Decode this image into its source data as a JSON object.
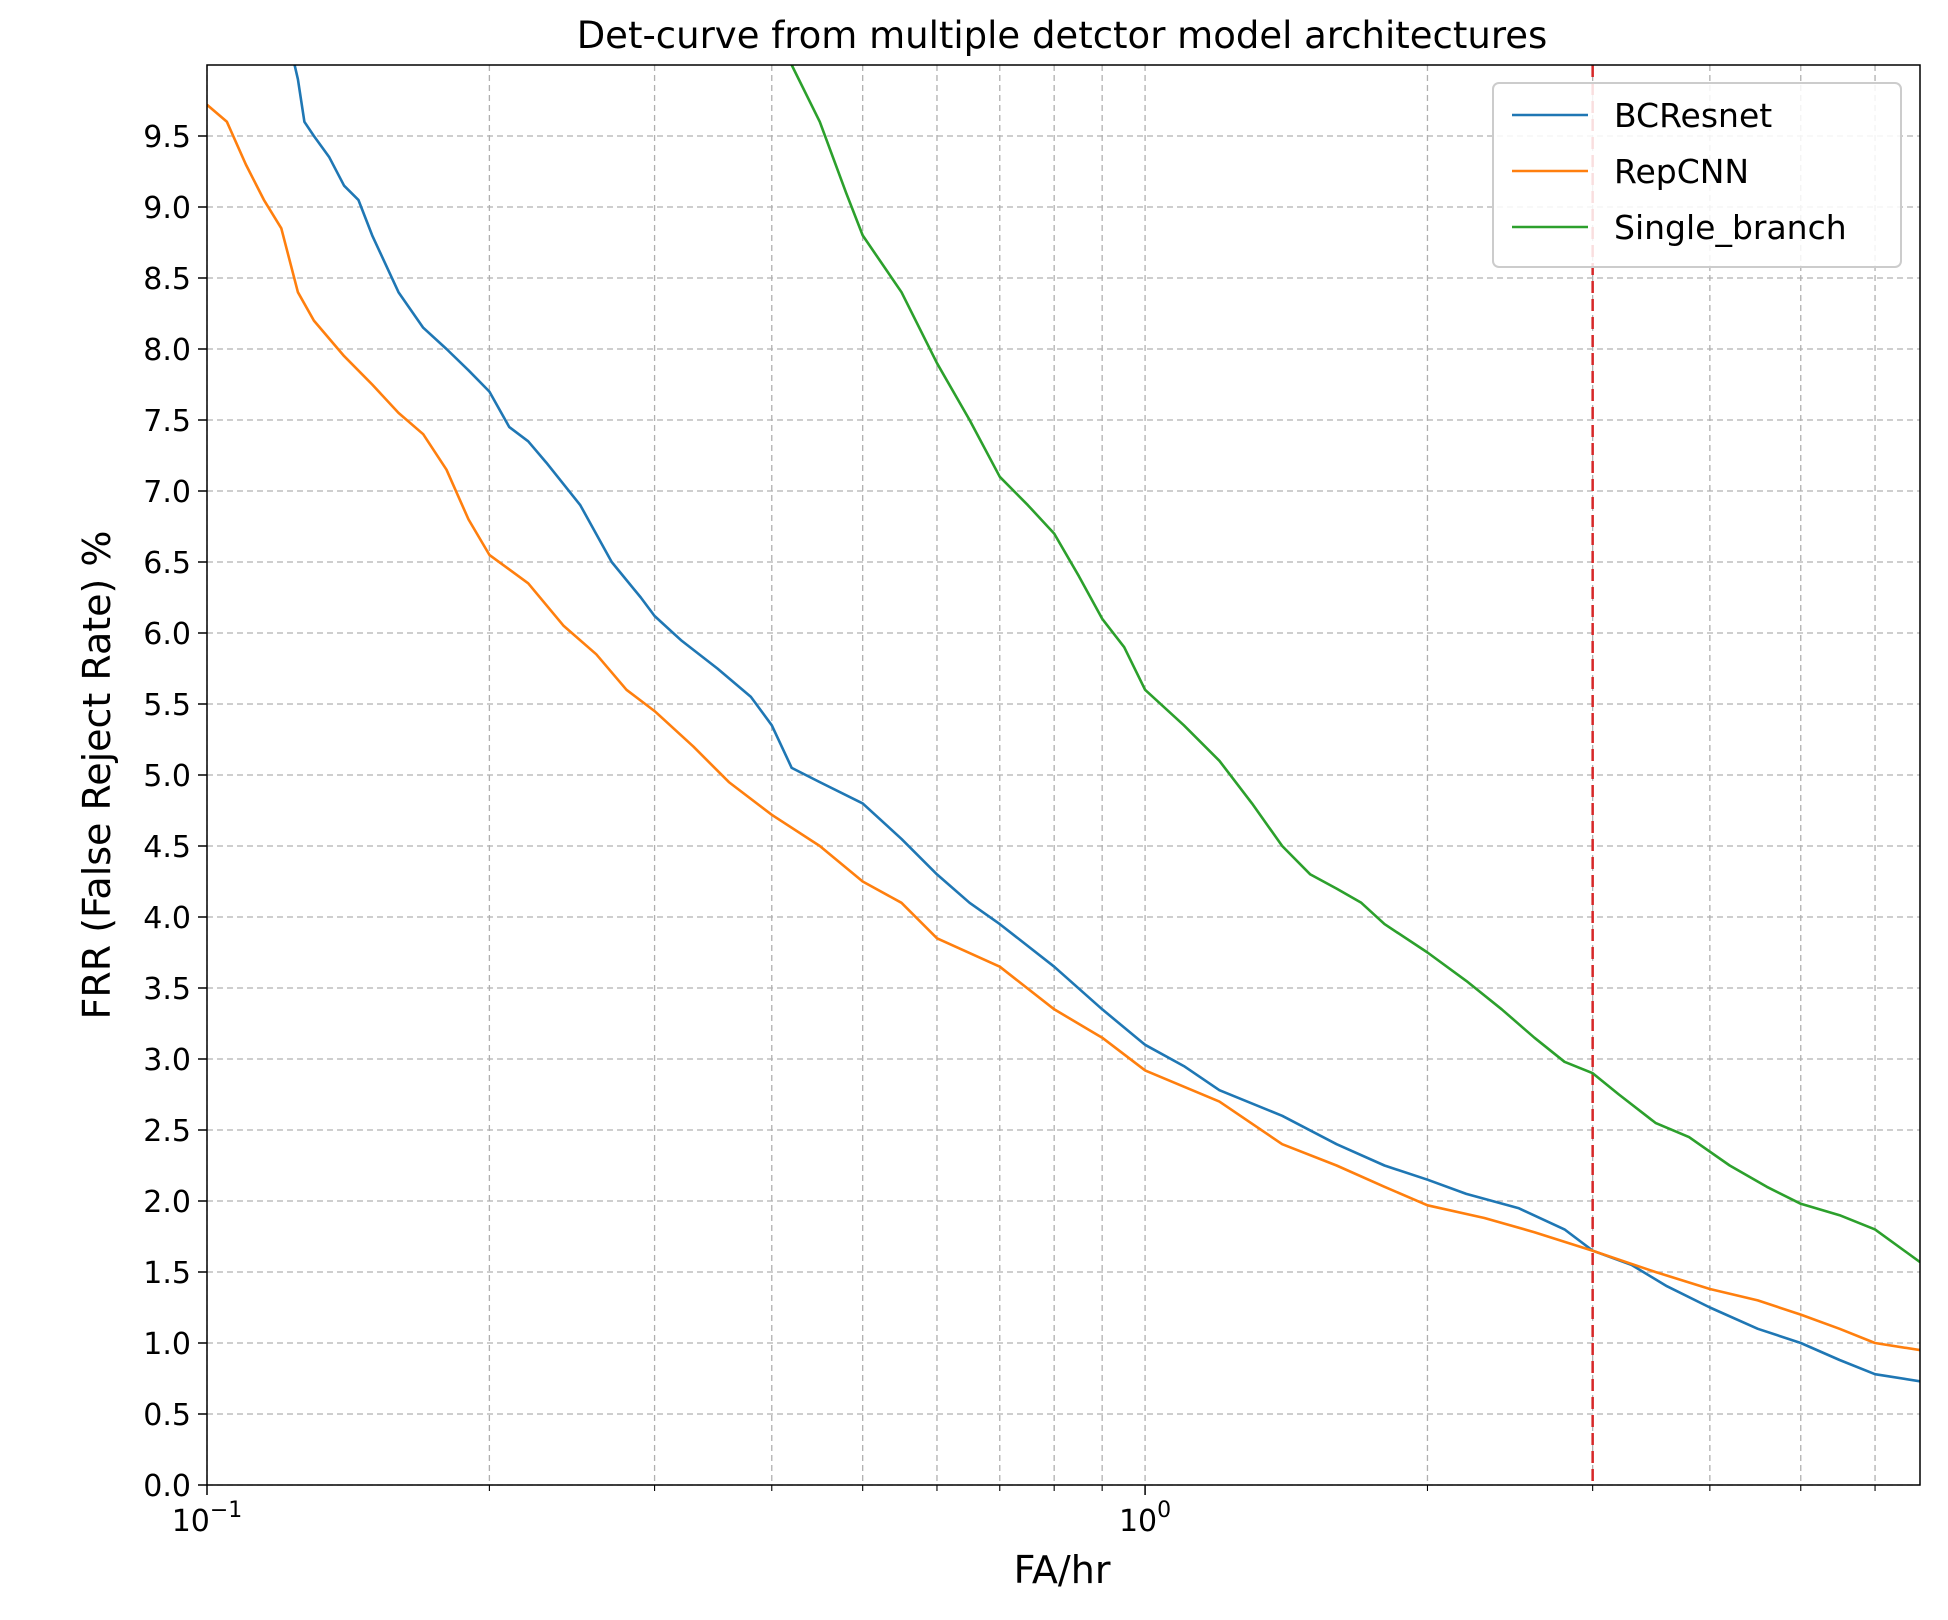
{
  "chart_data": {
    "type": "line",
    "title": "Det-curve from multiple detctor model architectures",
    "xlabel": "FA/hr",
    "ylabel": "FRR (False Reject Rate) %",
    "x_scale": "log",
    "xlim": [
      0.1,
      6.7
    ],
    "ylim": [
      0.0,
      10.0
    ],
    "x_ticks": [
      {
        "base": "10",
        "exp": "−1"
      },
      {
        "base": "10",
        "exp": "0"
      }
    ],
    "y_ticks": [
      "0.0",
      "0.5",
      "1.0",
      "1.5",
      "2.0",
      "2.5",
      "3.0",
      "3.5",
      "4.0",
      "4.5",
      "5.0",
      "5.5",
      "6.0",
      "6.5",
      "7.0",
      "7.5",
      "8.0",
      "8.5",
      "9.0",
      "9.5"
    ],
    "grid": true,
    "legend_position": "top-right",
    "reference_line": {
      "x": 3.0,
      "color": "#d62728",
      "style": "dashed"
    },
    "series": [
      {
        "name": "BCResnet",
        "color": "#1f77b4",
        "points": [
          [
            0.124,
            10.0
          ],
          [
            0.125,
            9.9
          ],
          [
            0.127,
            9.6
          ],
          [
            0.13,
            9.5
          ],
          [
            0.135,
            9.35
          ],
          [
            0.14,
            9.15
          ],
          [
            0.145,
            9.05
          ],
          [
            0.15,
            8.8
          ],
          [
            0.16,
            8.4
          ],
          [
            0.17,
            8.15
          ],
          [
            0.18,
            8.0
          ],
          [
            0.19,
            7.85
          ],
          [
            0.2,
            7.7
          ],
          [
            0.21,
            7.45
          ],
          [
            0.22,
            7.35
          ],
          [
            0.23,
            7.2
          ],
          [
            0.25,
            6.9
          ],
          [
            0.27,
            6.5
          ],
          [
            0.29,
            6.25
          ],
          [
            0.3,
            6.12
          ],
          [
            0.32,
            5.95
          ],
          [
            0.35,
            5.75
          ],
          [
            0.38,
            5.55
          ],
          [
            0.4,
            5.35
          ],
          [
            0.42,
            5.05
          ],
          [
            0.45,
            4.95
          ],
          [
            0.5,
            4.8
          ],
          [
            0.55,
            4.55
          ],
          [
            0.6,
            4.3
          ],
          [
            0.65,
            4.1
          ],
          [
            0.7,
            3.95
          ],
          [
            0.8,
            3.65
          ],
          [
            0.9,
            3.35
          ],
          [
            1.0,
            3.1
          ],
          [
            1.1,
            2.95
          ],
          [
            1.2,
            2.78
          ],
          [
            1.4,
            2.6
          ],
          [
            1.6,
            2.4
          ],
          [
            1.8,
            2.25
          ],
          [
            2.0,
            2.15
          ],
          [
            2.2,
            2.05
          ],
          [
            2.5,
            1.95
          ],
          [
            2.8,
            1.8
          ],
          [
            3.0,
            1.65
          ],
          [
            3.3,
            1.55
          ],
          [
            3.6,
            1.4
          ],
          [
            4.0,
            1.25
          ],
          [
            4.5,
            1.1
          ],
          [
            5.0,
            1.0
          ],
          [
            5.5,
            0.88
          ],
          [
            6.0,
            0.78
          ],
          [
            6.7,
            0.73
          ]
        ]
      },
      {
        "name": "RepCNN",
        "color": "#ff7f0e",
        "points": [
          [
            0.1,
            9.72
          ],
          [
            0.105,
            9.6
          ],
          [
            0.11,
            9.3
          ],
          [
            0.115,
            9.05
          ],
          [
            0.12,
            8.85
          ],
          [
            0.125,
            8.4
          ],
          [
            0.13,
            8.2
          ],
          [
            0.14,
            7.95
          ],
          [
            0.15,
            7.75
          ],
          [
            0.16,
            7.55
          ],
          [
            0.17,
            7.4
          ],
          [
            0.18,
            7.15
          ],
          [
            0.19,
            6.8
          ],
          [
            0.2,
            6.55
          ],
          [
            0.22,
            6.35
          ],
          [
            0.24,
            6.05
          ],
          [
            0.26,
            5.85
          ],
          [
            0.28,
            5.6
          ],
          [
            0.3,
            5.45
          ],
          [
            0.33,
            5.2
          ],
          [
            0.36,
            4.95
          ],
          [
            0.4,
            4.72
          ],
          [
            0.45,
            4.5
          ],
          [
            0.5,
            4.25
          ],
          [
            0.55,
            4.1
          ],
          [
            0.6,
            3.85
          ],
          [
            0.7,
            3.65
          ],
          [
            0.8,
            3.35
          ],
          [
            0.9,
            3.15
          ],
          [
            1.0,
            2.92
          ],
          [
            1.2,
            2.7
          ],
          [
            1.4,
            2.4
          ],
          [
            1.6,
            2.25
          ],
          [
            1.8,
            2.1
          ],
          [
            2.0,
            1.97
          ],
          [
            2.3,
            1.88
          ],
          [
            2.6,
            1.78
          ],
          [
            3.0,
            1.65
          ],
          [
            3.5,
            1.5
          ],
          [
            4.0,
            1.38
          ],
          [
            4.5,
            1.3
          ],
          [
            5.0,
            1.2
          ],
          [
            5.5,
            1.1
          ],
          [
            6.0,
            1.0
          ],
          [
            6.7,
            0.95
          ]
        ]
      },
      {
        "name": "Single_branch",
        "color": "#2ca02c",
        "points": [
          [
            0.42,
            10.0
          ],
          [
            0.45,
            9.6
          ],
          [
            0.48,
            9.1
          ],
          [
            0.5,
            8.8
          ],
          [
            0.55,
            8.4
          ],
          [
            0.6,
            7.9
          ],
          [
            0.65,
            7.5
          ],
          [
            0.7,
            7.1
          ],
          [
            0.75,
            6.9
          ],
          [
            0.8,
            6.7
          ],
          [
            0.85,
            6.4
          ],
          [
            0.9,
            6.1
          ],
          [
            0.95,
            5.9
          ],
          [
            1.0,
            5.6
          ],
          [
            1.1,
            5.35
          ],
          [
            1.2,
            5.1
          ],
          [
            1.3,
            4.8
          ],
          [
            1.4,
            4.5
          ],
          [
            1.5,
            4.3
          ],
          [
            1.6,
            4.2
          ],
          [
            1.7,
            4.1
          ],
          [
            1.8,
            3.95
          ],
          [
            2.0,
            3.75
          ],
          [
            2.2,
            3.55
          ],
          [
            2.4,
            3.35
          ],
          [
            2.6,
            3.15
          ],
          [
            2.8,
            2.98
          ],
          [
            3.0,
            2.9
          ],
          [
            3.2,
            2.75
          ],
          [
            3.5,
            2.55
          ],
          [
            3.8,
            2.45
          ],
          [
            4.2,
            2.25
          ],
          [
            4.6,
            2.1
          ],
          [
            5.0,
            1.98
          ],
          [
            5.5,
            1.9
          ],
          [
            6.0,
            1.8
          ],
          [
            6.7,
            1.57
          ]
        ]
      }
    ]
  }
}
